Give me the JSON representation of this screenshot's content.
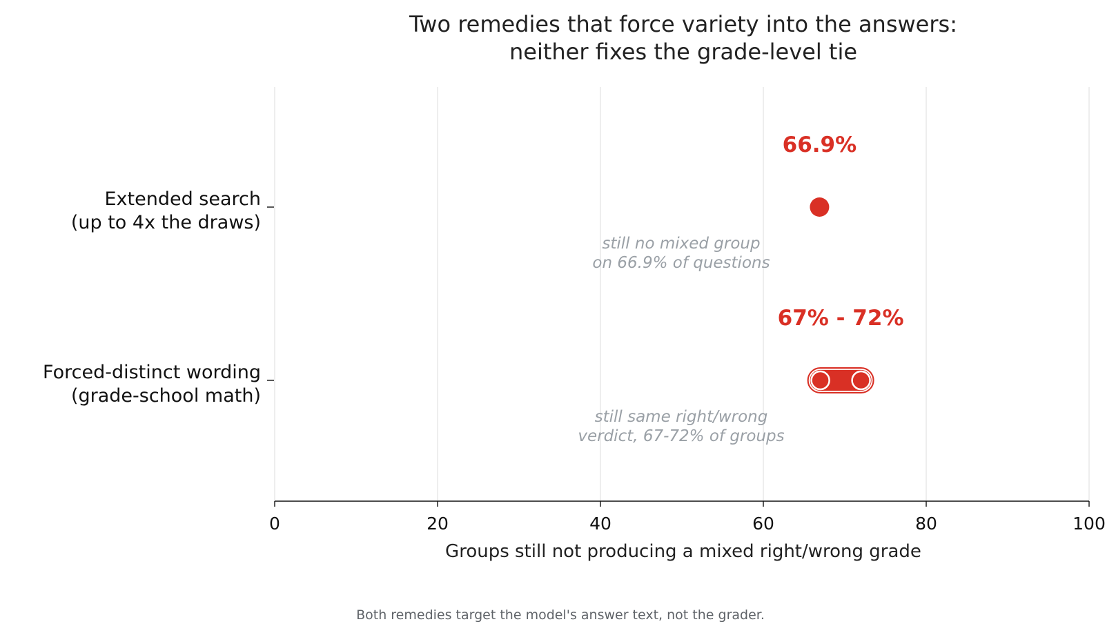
{
  "chart_data": {
    "type": "scatter",
    "title": [
      "Two remedies that force variety into the answers:",
      "neither fixes the grade-level tie"
    ],
    "xlabel": "Groups still not producing a mixed right/wrong grade",
    "xlim": [
      0,
      100
    ],
    "xticks": [
      0,
      20,
      40,
      60,
      80,
      100
    ],
    "grid": "vertical",
    "accent_color": "#d93025",
    "rows": [
      {
        "label": [
          "Extended search",
          "(up to 4x the draws)"
        ],
        "kind": "point",
        "value": 66.9,
        "value_label": "66.9%",
        "note": [
          "still no mixed group",
          "on 66.9% of questions"
        ]
      },
      {
        "label": [
          "Forced-distinct wording",
          "(grade-school math)"
        ],
        "kind": "range",
        "low": 67,
        "high": 72,
        "value_label": "67% - 72%",
        "note": [
          "still same right/wrong",
          "verdict, 67-72% of groups"
        ]
      }
    ],
    "footnote": "Both remedies target the model's answer text, not the grader."
  }
}
